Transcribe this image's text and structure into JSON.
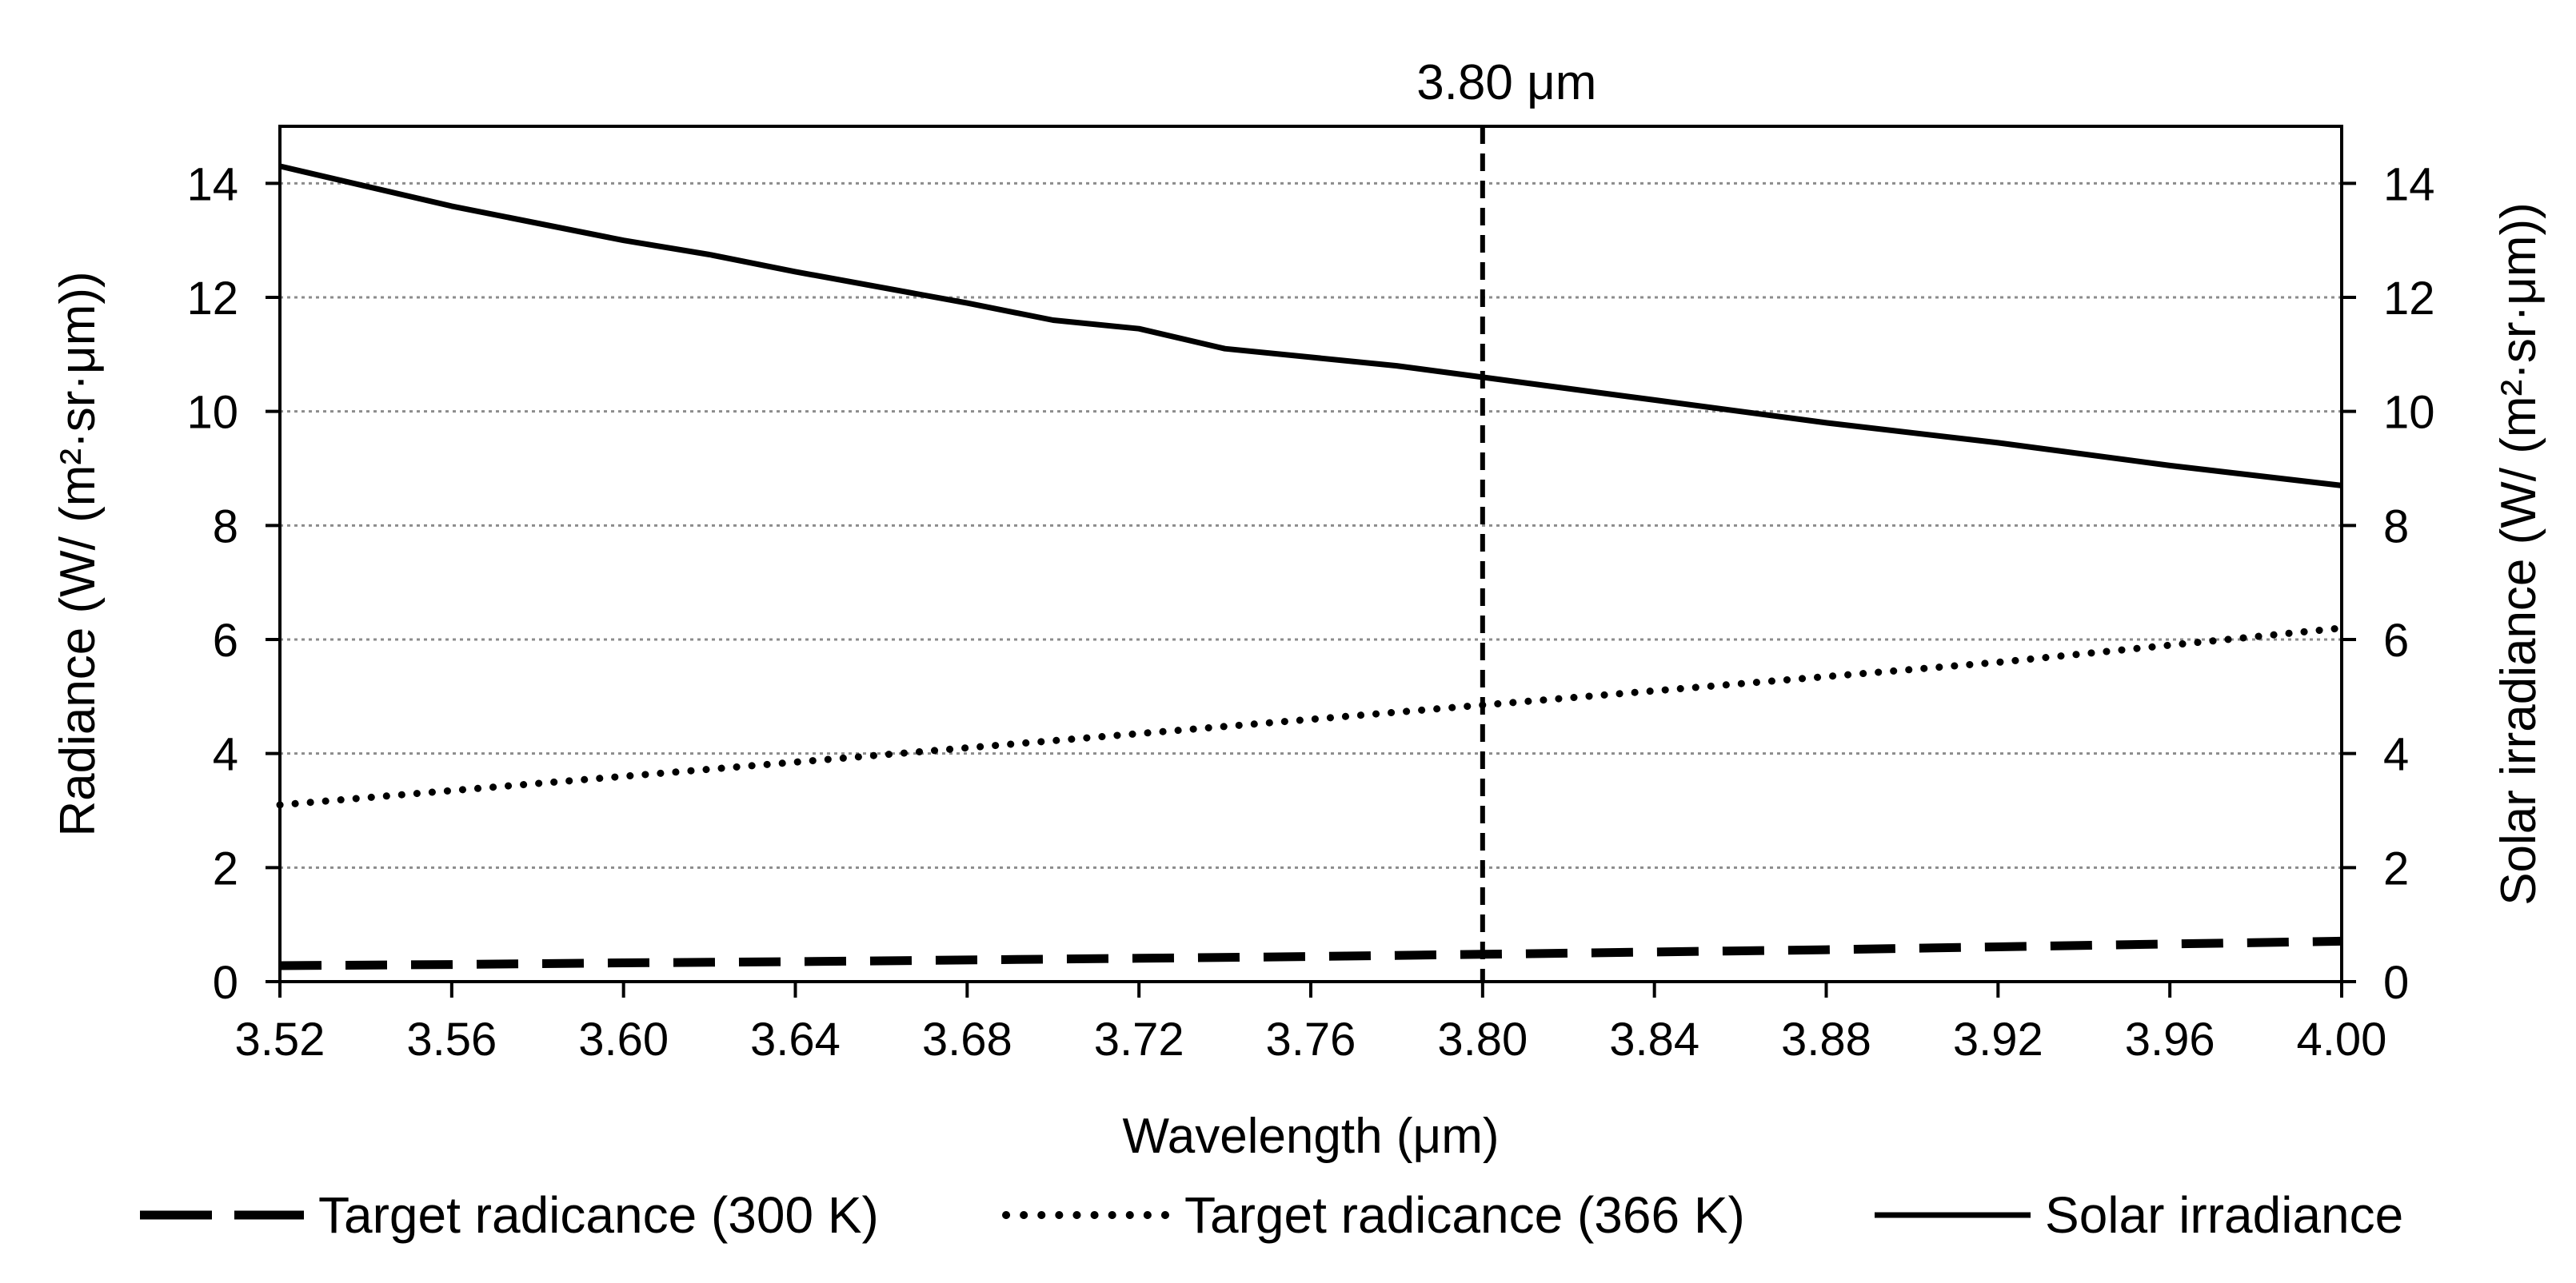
{
  "chart_data": {
    "type": "line",
    "title": "",
    "xlabel": "Wavelength (μm)",
    "ylabel": "Radiance (W/ (m²·sr·μm))",
    "y2label": "Solar irradiance (W/ (m²·sr·μm))",
    "xlim": [
      3.52,
      4.0
    ],
    "ylim": [
      0,
      15
    ],
    "y2lim": [
      0,
      15
    ],
    "x_ticks": [
      "3.52",
      "3.56",
      "3.60",
      "3.64",
      "3.68",
      "3.72",
      "3.76",
      "3.80",
      "3.84",
      "3.88",
      "3.92",
      "3.96",
      "4.00"
    ],
    "y_ticks": [
      "0",
      "2",
      "4",
      "6",
      "8",
      "10",
      "12",
      "14"
    ],
    "y2_ticks": [
      "0",
      "2",
      "4",
      "6",
      "8",
      "10",
      "12",
      "14"
    ],
    "grid": "horizontal dotted",
    "legend_position": "bottom",
    "annotation": {
      "x": 3.8,
      "label": "3.80 μm",
      "style": "dashed vertical line"
    },
    "series": [
      {
        "name": "Target radicance (300 K)",
        "style": "dashed",
        "axis": "left",
        "x": [
          3.52,
          3.56,
          3.6,
          3.64,
          3.68,
          3.72,
          3.76,
          3.8,
          3.84,
          3.88,
          3.92,
          3.96,
          4.0
        ],
        "values": [
          0.28,
          0.3,
          0.33,
          0.35,
          0.38,
          0.41,
          0.44,
          0.48,
          0.52,
          0.56,
          0.61,
          0.66,
          0.71
        ]
      },
      {
        "name": "Target radicance (366 K)",
        "style": "dotted",
        "axis": "left",
        "x": [
          3.52,
          3.56,
          3.6,
          3.64,
          3.68,
          3.72,
          3.76,
          3.8,
          3.84,
          3.88,
          3.92,
          3.96,
          4.0
        ],
        "values": [
          3.1,
          3.35,
          3.6,
          3.85,
          4.1,
          4.35,
          4.6,
          4.85,
          5.1,
          5.35,
          5.6,
          5.9,
          6.2
        ]
      },
      {
        "name": "Solar irradiance",
        "style": "solid",
        "axis": "right",
        "x": [
          3.52,
          3.56,
          3.6,
          3.62,
          3.64,
          3.68,
          3.7,
          3.72,
          3.74,
          3.76,
          3.78,
          3.8,
          3.84,
          3.88,
          3.92,
          3.96,
          4.0
        ],
        "values": [
          14.3,
          13.6,
          13.0,
          12.75,
          12.45,
          11.9,
          11.6,
          11.45,
          11.1,
          10.95,
          10.8,
          10.6,
          10.2,
          9.8,
          9.45,
          9.05,
          8.7
        ]
      }
    ]
  }
}
